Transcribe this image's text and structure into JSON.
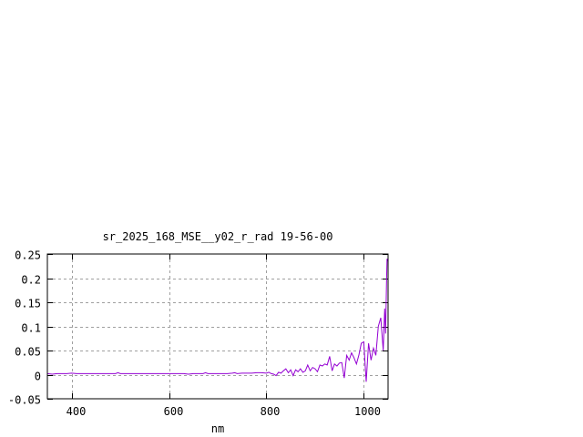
{
  "chart_data": {
    "type": "line",
    "title": "sr_2025_168_MSE__y02_r_rad 19-56-00",
    "xlabel": "nm",
    "ylabel": "",
    "xlim": [
      350,
      1050
    ],
    "ylim": [
      -0.05,
      0.25
    ],
    "xticks": [
      400,
      600,
      800,
      1000
    ],
    "xtick_labels": [
      "400",
      "600",
      "800",
      "1000"
    ],
    "yticks": [
      -0.05,
      0,
      0.05,
      0.1,
      0.15,
      0.2,
      0.25
    ],
    "ytick_labels": [
      "-0.05",
      "0",
      "0.05",
      "0.1",
      "0.15",
      "0.2",
      "0.25"
    ],
    "grid": true,
    "series": [
      {
        "color": "#9400d3",
        "x": [
          350,
          360,
          370,
          380,
          390,
          400,
          410,
          420,
          430,
          440,
          450,
          460,
          470,
          480,
          490,
          495,
          500,
          510,
          520,
          530,
          540,
          550,
          560,
          570,
          580,
          590,
          600,
          610,
          620,
          630,
          640,
          650,
          660,
          670,
          675,
          680,
          690,
          700,
          710,
          720,
          730,
          735,
          740,
          750,
          760,
          770,
          780,
          790,
          800,
          805,
          810,
          815,
          820,
          825,
          830,
          835,
          840,
          845,
          850,
          855,
          860,
          865,
          870,
          875,
          880,
          885,
          890,
          895,
          900,
          905,
          910,
          915,
          920,
          925,
          930,
          935,
          940,
          945,
          950,
          955,
          960,
          965,
          970,
          975,
          980,
          985,
          990,
          995,
          1000,
          1005,
          1010,
          1015,
          1020,
          1025,
          1030,
          1035,
          1040,
          1043,
          1045,
          1047,
          1048,
          1050
        ],
        "y": [
          0.002,
          0.001,
          0.002,
          0.002,
          0.002,
          0.003,
          0.002,
          0.002,
          0.002,
          0.002,
          0.002,
          0.002,
          0.002,
          0.002,
          0.002,
          0.004,
          0.002,
          0.002,
          0.002,
          0.002,
          0.002,
          0.002,
          0.002,
          0.002,
          0.002,
          0.002,
          0.002,
          0.002,
          0.002,
          0.002,
          0.001,
          0.002,
          0.002,
          0.002,
          0.004,
          0.002,
          0.002,
          0.002,
          0.002,
          0.002,
          0.003,
          0.004,
          0.002,
          0.003,
          0.003,
          0.003,
          0.004,
          0.004,
          0.003,
          0.005,
          0.002,
          0.001,
          -0.002,
          0.005,
          0.003,
          0.008,
          0.012,
          0.004,
          0.01,
          -0.002,
          0.01,
          0.006,
          0.012,
          0.005,
          0.008,
          0.02,
          0.008,
          0.015,
          0.012,
          0.006,
          0.02,
          0.018,
          0.022,
          0.02,
          0.038,
          0.008,
          0.022,
          0.018,
          0.024,
          0.025,
          -0.007,
          0.04,
          0.03,
          0.045,
          0.035,
          0.022,
          0.04,
          0.065,
          0.068,
          -0.015,
          0.065,
          0.03,
          0.055,
          0.04,
          0.1,
          0.118,
          0.05,
          0.137,
          0.085,
          0.2,
          0.24,
          0.235
        ]
      }
    ]
  }
}
